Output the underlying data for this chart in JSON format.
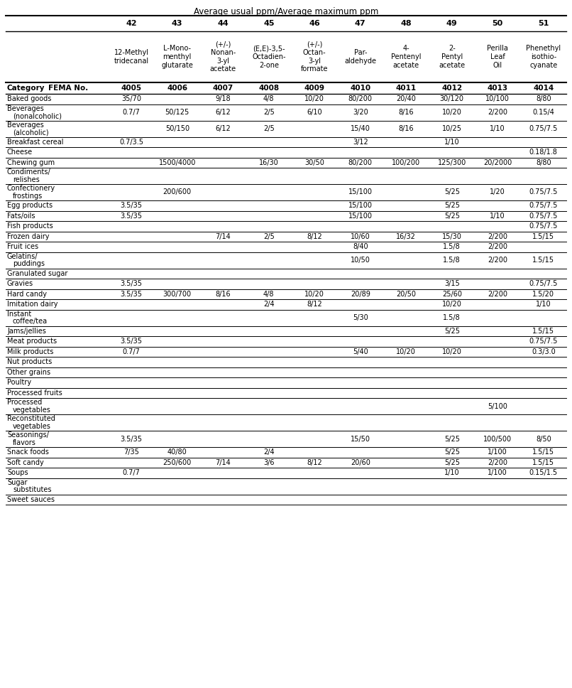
{
  "title": "Average usual ppm/Average maximum ppm",
  "col_numbers": [
    "42",
    "43",
    "44",
    "45",
    "46",
    "47",
    "48",
    "49",
    "50",
    "51"
  ],
  "col_names": [
    "12-Methyl\ntridecanal",
    "L-Mono-\nmenthyl\nglutarate",
    "(+/-)\nNonan-\n3-yl\nacetate",
    "(E,E)-3,5-\nOctadien-\n2-one",
    "(+/-)\nOctan-\n3-yl\nformate",
    "Par-\naldehyde",
    "4-\nPentenyl\nacetate",
    "2-\nPentyl\nacetate",
    "Perilla\nLeaf\nOil",
    "Phenethyl\nisothio-\ncyanate"
  ],
  "fema_numbers": [
    "4005",
    "4006",
    "4007",
    "4008",
    "4009",
    "4010",
    "4011",
    "4012",
    "4013",
    "4014"
  ],
  "rows": [
    [
      "Baked goods",
      "35/70",
      "",
      "9/18",
      "4/8",
      "10/20",
      "80/200",
      "20/40",
      "30/120",
      "10/100",
      "8/80"
    ],
    [
      "Beverages\n(nonalcoholic)",
      "0.7/7",
      "50/125",
      "6/12",
      "2/5",
      "6/10",
      "3/20",
      "8/16",
      "10/20",
      "2/200",
      "0.15/4"
    ],
    [
      "Beverages\n(alcoholic)",
      "",
      "50/150",
      "6/12",
      "2/5",
      "",
      "15/40",
      "8/16",
      "10/25",
      "1/10",
      "0.75/7.5"
    ],
    [
      "Breakfast cereal",
      "0.7/3.5",
      "",
      "",
      "",
      "",
      "3/12",
      "",
      "1/10",
      "",
      ""
    ],
    [
      "Cheese",
      "",
      "",
      "",
      "",
      "",
      "",
      "",
      "",
      "",
      "0.18/1.8"
    ],
    [
      "Chewing gum",
      "",
      "1500/4000",
      "",
      "16/30",
      "30/50",
      "80/200",
      "100/200",
      "125/300",
      "20/2000",
      "8/80"
    ],
    [
      "Condiments/\nrelishes",
      "",
      "",
      "",
      "",
      "",
      "",
      "",
      "",
      "",
      ""
    ],
    [
      "Confectionery\nfrostings",
      "",
      "200/600",
      "",
      "",
      "",
      "15/100",
      "",
      "5/25",
      "1/20",
      "0.75/7.5"
    ],
    [
      "Egg products",
      "3.5/35",
      "",
      "",
      "",
      "",
      "15/100",
      "",
      "5/25",
      "",
      "0.75/7.5"
    ],
    [
      "Fats/oils",
      "3.5/35",
      "",
      "",
      "",
      "",
      "15/100",
      "",
      "5/25",
      "1/10",
      "0.75/7.5"
    ],
    [
      "Fish products",
      "",
      "",
      "",
      "",
      "",
      "",
      "",
      "",
      "",
      "0.75/7.5"
    ],
    [
      "Frozen dairy",
      "",
      "",
      "7/14",
      "2/5",
      "8/12",
      "10/60",
      "16/32",
      "15/30",
      "2/200",
      "1.5/15"
    ],
    [
      "Fruit ices",
      "",
      "",
      "",
      "",
      "",
      "8/40",
      "",
      "1.5/8",
      "2/200",
      ""
    ],
    [
      "Gelatins/\npuddings",
      "",
      "",
      "",
      "",
      "",
      "10/50",
      "",
      "1.5/8",
      "2/200",
      "1.5/15"
    ],
    [
      "Granulated sugar",
      "",
      "",
      "",
      "",
      "",
      "",
      "",
      "",
      "",
      ""
    ],
    [
      "Gravies",
      "3.5/35",
      "",
      "",
      "",
      "",
      "",
      "",
      "3/15",
      "",
      "0.75/7.5"
    ],
    [
      "Hard candy",
      "3.5/35",
      "300/700",
      "8/16",
      "4/8",
      "10/20",
      "20/89",
      "20/50",
      "25/60",
      "2/200",
      "1.5/20"
    ],
    [
      "Imitation dairy",
      "",
      "",
      "",
      "2/4",
      "8/12",
      "",
      "",
      "10/20",
      "",
      "1/10"
    ],
    [
      "Instant\ncoffee/tea",
      "",
      "",
      "",
      "",
      "",
      "5/30",
      "",
      "1.5/8",
      "",
      ""
    ],
    [
      "Jams/jellies",
      "",
      "",
      "",
      "",
      "",
      "",
      "",
      "5/25",
      "",
      "1.5/15"
    ],
    [
      "Meat products",
      "3.5/35",
      "",
      "",
      "",
      "",
      "",
      "",
      "",
      "",
      "0.75/7.5"
    ],
    [
      "Milk products",
      "0.7/7",
      "",
      "",
      "",
      "",
      "5/40",
      "10/20",
      "10/20",
      "",
      "0.3/3.0"
    ],
    [
      "Nut products",
      "",
      "",
      "",
      "",
      "",
      "",
      "",
      "",
      "",
      ""
    ],
    [
      "Other grains",
      "",
      "",
      "",
      "",
      "",
      "",
      "",
      "",
      "",
      ""
    ],
    [
      "Poultry",
      "",
      "",
      "",
      "",
      "",
      "",
      "",
      "",
      "",
      ""
    ],
    [
      "Processed fruits",
      "",
      "",
      "",
      "",
      "",
      "",
      "",
      "",
      "",
      ""
    ],
    [
      "Processed\nvegetables",
      "",
      "",
      "",
      "",
      "",
      "",
      "",
      "",
      "5/100",
      ""
    ],
    [
      "Reconstituted\nvegetables",
      "",
      "",
      "",
      "",
      "",
      "",
      "",
      "",
      "",
      ""
    ],
    [
      "Seasonings/\nflavors",
      "3.5/35",
      "",
      "",
      "",
      "",
      "15/50",
      "",
      "5/25",
      "100/500",
      "8/50"
    ],
    [
      "Snack foods",
      "7/35",
      "40/80",
      "",
      "2/4",
      "",
      "",
      "",
      "5/25",
      "1/100",
      "1.5/15"
    ],
    [
      "Soft candy",
      "",
      "250/600",
      "7/14",
      "3/6",
      "8/12",
      "20/60",
      "",
      "5/25",
      "2/200",
      "1.5/15"
    ],
    [
      "Soups",
      "0.7/7",
      "",
      "",
      "",
      "",
      "",
      "",
      "1/10",
      "1/100",
      "0.15/1.5"
    ],
    [
      "Sugar\nsubstitutes",
      "",
      "",
      "",
      "",
      "",
      "",
      "",
      "",
      "",
      ""
    ],
    [
      "Sweet sauces",
      "",
      "",
      "",
      "",
      "",
      "",
      "",
      "",
      "",
      ""
    ]
  ]
}
